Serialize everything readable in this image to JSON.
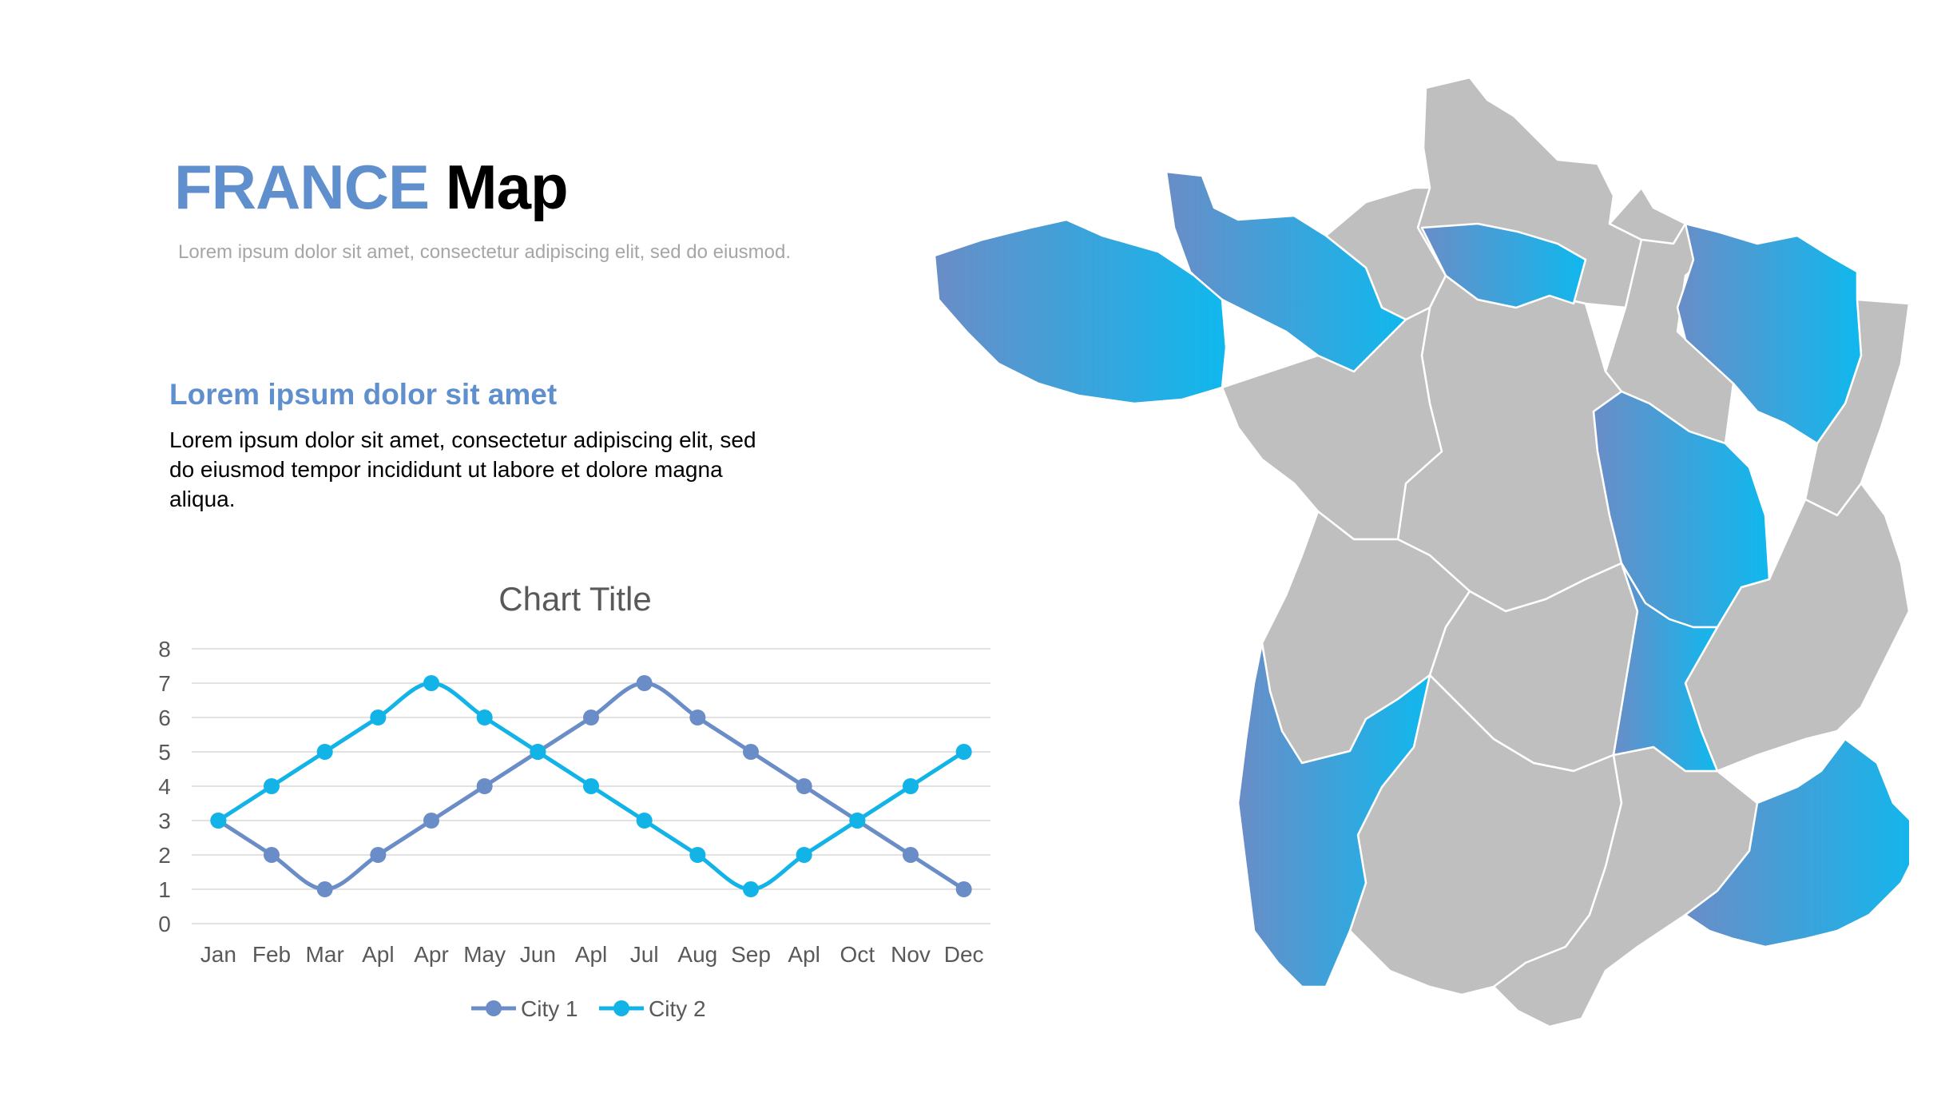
{
  "slide": {
    "title_accent": "FRANCE",
    "title_rest": "Map",
    "subtitle": "Lorem ipsum dolor sit amet, consectetur adipiscing elit, sed do eiusmod.",
    "heading": "Lorem ipsum dolor sit amet",
    "body": "Lorem ipsum dolor sit amet, consectetur adipiscing elit, sed do eiusmod tempor incididunt ut labore et dolore magna aliqua."
  },
  "colors": {
    "accent": "#5f8fcd",
    "city1": "#6a8dc7",
    "city2": "#12b3e6",
    "region_grey": "#bfbfbf",
    "region_blue_from": "#6a8dc7",
    "region_blue_to": "#0fb8ee"
  },
  "chart_data": {
    "type": "line",
    "title": "Chart Title",
    "categories": [
      "Jan",
      "Feb",
      "Mar",
      "Apl",
      "Apr",
      "May",
      "Jun",
      "Apl",
      "Jul",
      "Aug",
      "Sep",
      "Apl",
      "Oct",
      "Nov",
      "Dec"
    ],
    "series": [
      {
        "name": "City 1",
        "values": [
          3,
          2,
          1,
          2,
          3,
          4,
          5,
          6,
          7,
          6,
          5,
          4,
          3,
          2,
          1
        ]
      },
      {
        "name": "City 2",
        "values": [
          3,
          4,
          5,
          6,
          7,
          6,
          5,
          4,
          3,
          2,
          1,
          2,
          3,
          4,
          5
        ]
      }
    ],
    "ylim": [
      0,
      8
    ],
    "yticks": [
      0,
      1,
      2,
      3,
      4,
      5,
      6,
      7,
      8
    ],
    "grid": true,
    "smooth": true,
    "legend": "bottom"
  },
  "map": {
    "highlighted_regions": [
      "normandie",
      "bretagne",
      "ile-de-france",
      "grand-est",
      "bourgogne-franche-comte",
      "auvergne",
      "nouvelle-aquitaine-west",
      "provence-alpes-cote-dazur"
    ]
  }
}
